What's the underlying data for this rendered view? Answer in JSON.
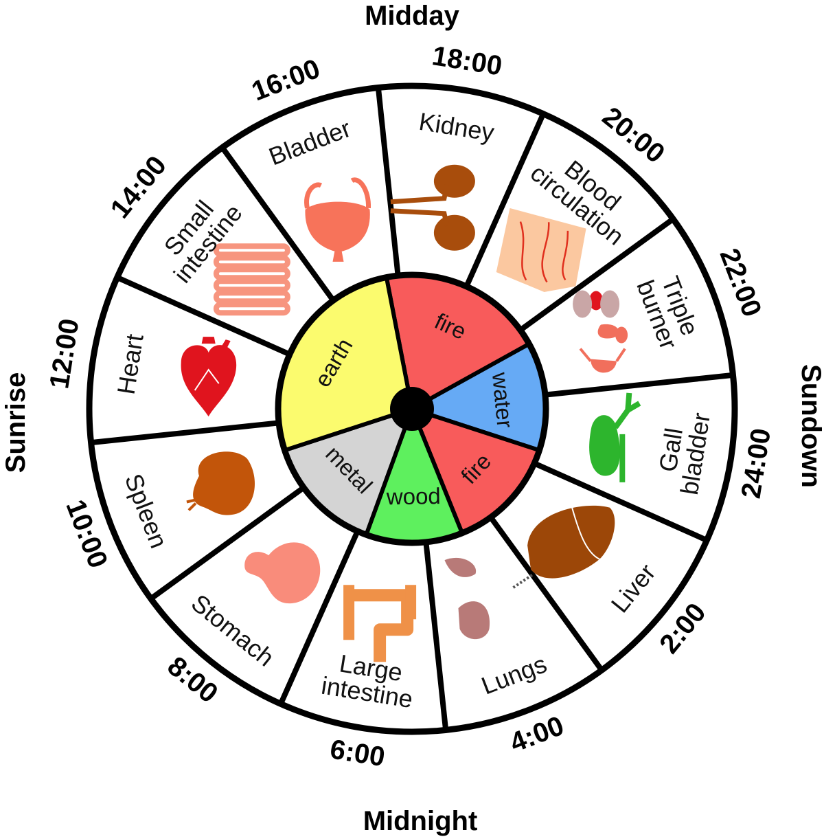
{
  "periods": {
    "top": "Midday",
    "bottom": "Midnight",
    "left": "Sunrise",
    "right": "Sundown"
  },
  "organs": [
    {
      "id": "heart",
      "lines": [
        "Heart"
      ],
      "time": "12:00",
      "icon_color": "#e0141e"
    },
    {
      "id": "small-intestine",
      "lines": [
        "Small",
        "intestine"
      ],
      "time": "14:00",
      "icon_color": "#f7957f"
    },
    {
      "id": "bladder",
      "lines": [
        "Bladder"
      ],
      "time": "16:00",
      "icon_color": "#f7735a"
    },
    {
      "id": "kidney",
      "lines": [
        "Kidney"
      ],
      "time": "18:00",
      "icon_color": "#a84d0c"
    },
    {
      "id": "blood-circulation",
      "lines": [
        "Blood",
        "circulation"
      ],
      "time": "20:00",
      "icon_color": "#fbc8a0"
    },
    {
      "id": "triple-burner",
      "lines": [
        "Triple",
        "burner"
      ],
      "time": "22:00",
      "icon_color": "#f16f5c"
    },
    {
      "id": "gall-bladder",
      "lines": [
        "Gall",
        "bladder"
      ],
      "time": "24:00",
      "icon_color": "#2db52d"
    },
    {
      "id": "liver",
      "lines": [
        "Liver"
      ],
      "time": "2:00",
      "icon_color": "#9c4708"
    },
    {
      "id": "lungs",
      "lines": [
        "Lungs"
      ],
      "time": "4:00",
      "icon_color": "#b87a78"
    },
    {
      "id": "large-intestine",
      "lines": [
        "Large",
        "intestine"
      ],
      "time": "6:00",
      "icon_color": "#ef9148"
    },
    {
      "id": "stomach",
      "lines": [
        "Stomach"
      ],
      "time": "8:00",
      "icon_color": "#f98c7b"
    },
    {
      "id": "spleen",
      "lines": [
        "Spleen"
      ],
      "time": "10:00",
      "icon_color": "#c2550a"
    }
  ],
  "elements": [
    {
      "label": "fire",
      "color": "#f85b5b"
    },
    {
      "label": "water",
      "color": "#66aaf5"
    },
    {
      "label": "fire",
      "color": "#f85b5b"
    },
    {
      "label": "wood",
      "color": "#5ef05e"
    },
    {
      "label": "metal",
      "color": "#d4d4d4"
    },
    {
      "label": "earth",
      "color": "#fbfb6e"
    }
  ]
}
